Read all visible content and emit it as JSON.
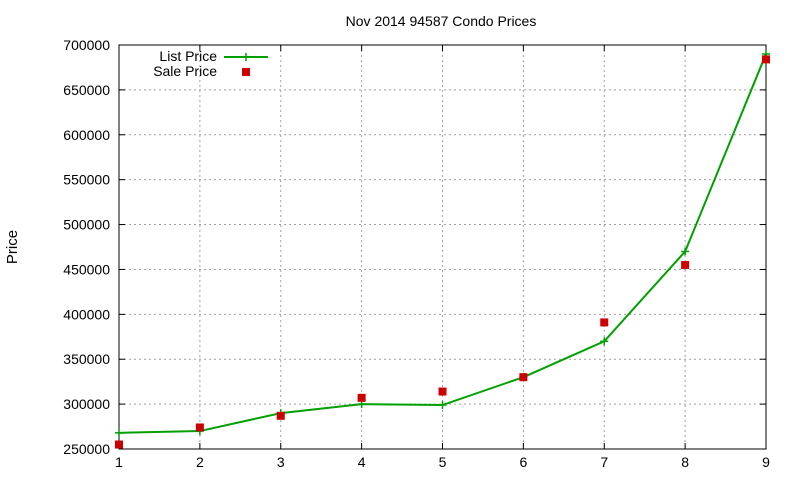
{
  "chart_data": {
    "type": "line",
    "title": "Nov 2014 94587 Condo Prices",
    "xlabel": "",
    "ylabel": "Price",
    "xlim": [
      1,
      9
    ],
    "ylim": [
      250000,
      700000
    ],
    "x_ticks": [
      "1",
      "2",
      "3",
      "4",
      "5",
      "6",
      "7",
      "8",
      "9"
    ],
    "y_ticks": [
      "250000",
      "300000",
      "350000",
      "400000",
      "450000",
      "500000",
      "550000",
      "600000",
      "650000",
      "700000"
    ],
    "grid": true,
    "legend_position": "top-left",
    "x": [
      1,
      2,
      3,
      4,
      5,
      6,
      7,
      8,
      9
    ],
    "series": [
      {
        "name": "List Price",
        "style": "line with plus markers",
        "color": "#00a000",
        "values": [
          268000,
          270000,
          290000,
          300000,
          299000,
          330000,
          370000,
          470000,
          690000
        ]
      },
      {
        "name": "Sale Price",
        "style": "square markers",
        "color": "#cc0000",
        "values": [
          255000,
          274000,
          287000,
          307000,
          314000,
          330000,
          391000,
          455000,
          684000
        ]
      }
    ]
  }
}
